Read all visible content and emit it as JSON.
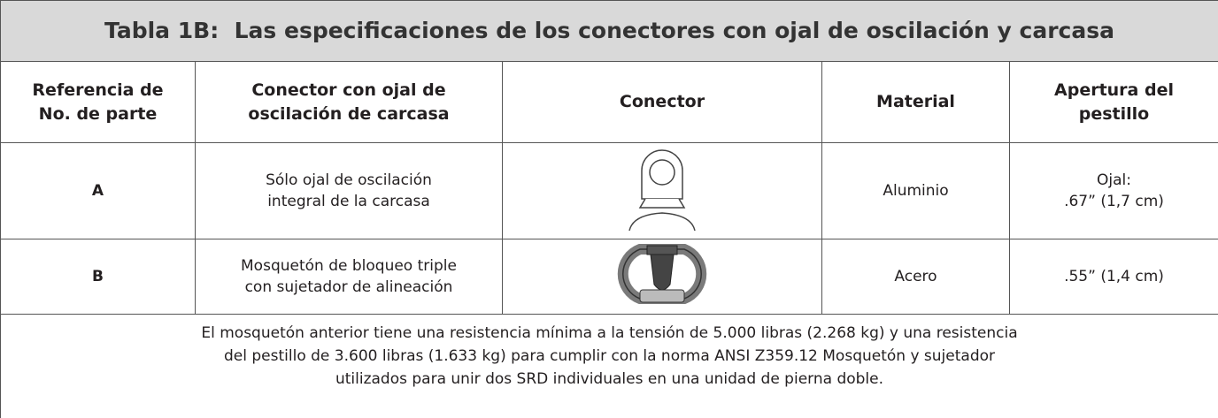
{
  "table": {
    "title": "Tabla 1B:  Las especificaciones de los conectores con ojal de oscilación y carcasa",
    "headers": [
      [
        "Referencia de",
        "No. de parte"
      ],
      [
        "Conector con ojal de",
        "oscilación de carcasa"
      ],
      [
        "Conector"
      ],
      [
        "Material"
      ],
      [
        "Apertura del",
        "pestillo"
      ]
    ],
    "rows": [
      {
        "part": "A",
        "description": [
          "Sólo ojal de oscilación",
          "integral de la carcasa"
        ],
        "material": "Aluminio",
        "opening": [
          "Ojal:",
          ".67” (1,7 cm)"
        ]
      },
      {
        "part": "B",
        "description": [
          "Mosquetón de bloqueo triple",
          "con sujetador de alineación"
        ],
        "material": "Acero",
        "opening": [
          ".55” (1,4 cm)"
        ]
      }
    ],
    "footnote": [
      "El mosquetón anterior tiene una resistencia mínima a la tensión de 5.000 libras (2.268 kg) y una resistencia",
      "del pestillo de 3.600 libras (1.633 kg) para cumplir con la norma ANSI Z359.12 Mosquetón y sujetador",
      "utilizados para unir dos SRD individuales en una unidad de pierna doble."
    ]
  }
}
